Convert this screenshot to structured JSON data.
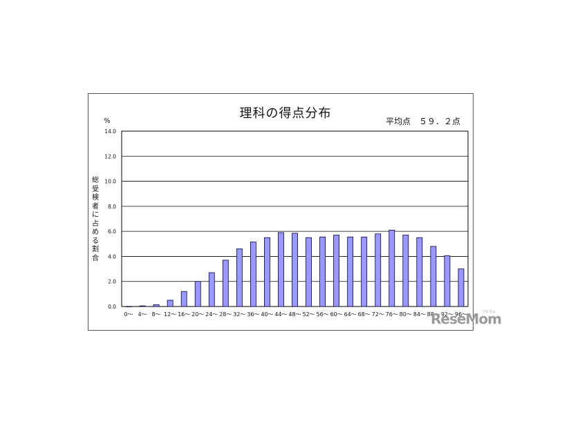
{
  "chart_data": {
    "type": "bar",
    "title": "理科の得点分布",
    "subtitle": "平均点　５９．２点",
    "ylabel": "総受検者に占める割合",
    "yunit": "%",
    "ylim": [
      0,
      14
    ],
    "yticks": [
      "0.0",
      "2.0",
      "4.0",
      "6.0",
      "8.0",
      "10.0",
      "12.0",
      "14.0"
    ],
    "grid": true,
    "bar_color": "#9999ff",
    "categories": [
      "0～",
      "4～",
      "8～",
      "12～",
      "16～",
      "20～",
      "24～",
      "28～",
      "32～",
      "36～",
      "40～",
      "44～",
      "48～",
      "52～",
      "56～",
      "60～",
      "64～",
      "68～",
      "72～",
      "76～",
      "80～",
      "84～",
      "88～",
      "92～",
      "96～"
    ],
    "values": [
      0.0,
      0.05,
      0.15,
      0.5,
      1.2,
      2.0,
      2.7,
      3.7,
      4.6,
      5.15,
      5.5,
      5.9,
      5.85,
      5.5,
      5.55,
      5.7,
      5.55,
      5.55,
      5.8,
      6.1,
      5.7,
      5.5,
      4.8,
      4.05,
      3.0
    ]
  },
  "watermark": {
    "text": "ReseMom",
    "sub": "リセマム"
  }
}
